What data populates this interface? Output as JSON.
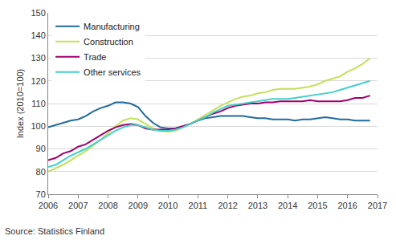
{
  "chart_data": {
    "type": "line",
    "y_label": "Index (2010=100)",
    "annotations": [
      "Source: Statistics Finland"
    ],
    "x": [
      2006,
      2006.25,
      2006.5,
      2006.75,
      2007,
      2007.25,
      2007.5,
      2007.75,
      2008,
      2008.25,
      2008.5,
      2008.75,
      2009,
      2009.25,
      2009.5,
      2009.75,
      2010,
      2010.25,
      2010.5,
      2010.75,
      2011,
      2011.25,
      2011.5,
      2011.75,
      2012,
      2012.25,
      2012.5,
      2012.75,
      2013,
      2013.25,
      2013.5,
      2013.75,
      2014,
      2014.25,
      2014.5,
      2014.75,
      2015,
      2015.25,
      2015.5,
      2015.75,
      2016,
      2016.25,
      2016.5,
      2016.75
    ],
    "series": [
      {
        "name": "Manufacturing",
        "color": "#1f6b9e",
        "values": [
          99.5,
          100.5,
          101.5,
          102.5,
          103,
          104.5,
          106.5,
          108,
          109,
          110.5,
          110.5,
          110,
          108.5,
          104.5,
          101.5,
          99.5,
          99,
          99,
          100,
          101,
          102.5,
          103.5,
          104,
          104.5,
          104.5,
          104.5,
          104.5,
          104,
          103.5,
          103.5,
          103,
          103,
          103,
          102.5,
          103,
          103,
          103.5,
          104,
          103.5,
          103,
          103,
          102.5,
          102.5,
          102.5
        ]
      },
      {
        "name": "Construction",
        "color": "#c5e05a",
        "values": [
          80,
          81.5,
          83,
          85,
          87,
          89,
          91.5,
          94,
          97,
          100,
          102.5,
          103.5,
          103,
          101,
          99,
          98,
          97.5,
          98,
          99.5,
          101,
          103,
          105,
          107,
          109,
          110.5,
          112,
          113,
          113.5,
          114.5,
          115,
          116,
          116.5,
          116.5,
          116.5,
          117,
          117.5,
          118.5,
          120,
          121,
          122,
          124,
          125.5,
          127.5,
          130
        ]
      },
      {
        "name": "Trade",
        "color": "#a0006e",
        "values": [
          85,
          86,
          88,
          89,
          91,
          92,
          94,
          96,
          98,
          99.5,
          100.5,
          101,
          100.5,
          99,
          98.5,
          98.5,
          98.5,
          99,
          100,
          101,
          102.5,
          104,
          105.5,
          106.5,
          108,
          109,
          109.5,
          110,
          110,
          110.5,
          110.5,
          111,
          111,
          111,
          111,
          111.5,
          111,
          111,
          111,
          111,
          111.5,
          112.5,
          112.5,
          113.5
        ]
      },
      {
        "name": "Other services",
        "color": "#43d1c8",
        "values": [
          82,
          83,
          85,
          87,
          88.5,
          90,
          92,
          94,
          96,
          98,
          99.5,
          100.5,
          100.5,
          99.5,
          98.5,
          98,
          98,
          98.5,
          99.5,
          101,
          102.5,
          104,
          106,
          107.5,
          109,
          109.5,
          110,
          110.5,
          111,
          111.5,
          112,
          112,
          112,
          112.5,
          113,
          113.5,
          114,
          114.5,
          115,
          116,
          117,
          118,
          119,
          120
        ]
      }
    ],
    "xlim": [
      2006,
      2017
    ],
    "xticks": [
      2006,
      2007,
      2008,
      2009,
      2010,
      2011,
      2012,
      2013,
      2014,
      2015,
      2016,
      2017
    ],
    "ylim": [
      70,
      150
    ],
    "yticks": [
      70,
      80,
      90,
      100,
      110,
      120,
      130,
      140,
      150
    ],
    "grid": true,
    "legend": "upper left"
  }
}
